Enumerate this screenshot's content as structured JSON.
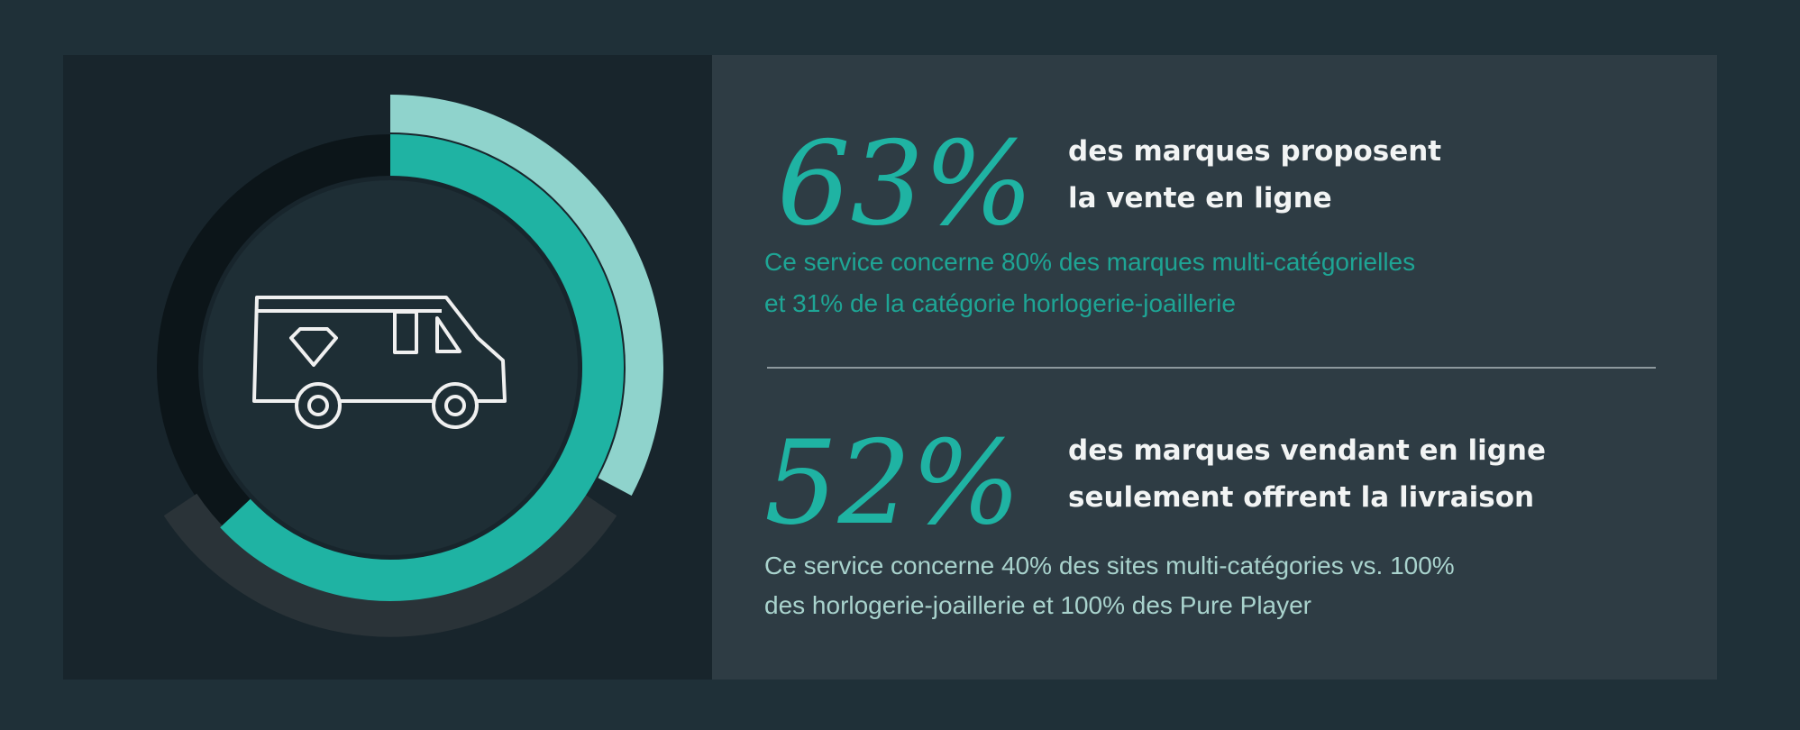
{
  "stats": [
    {
      "value": 63,
      "label": "63%",
      "headline": [
        "des marques proposent",
        "la vente en ligne"
      ],
      "detail": [
        "Ce service concerne 80% des marques multi-catégorielles",
        "et 31% de la catégorie horlogerie-joaillerie"
      ]
    },
    {
      "value": 52,
      "label": "52%",
      "headline": [
        "des marques vendant en ligne",
        "seulement offrent la livraison"
      ],
      "detail": [
        "Ce service concerne 40% des sites multi-catégories vs. 100%",
        "des horlogerie-joaillerie et 100% des Pure Player"
      ]
    }
  ]
}
